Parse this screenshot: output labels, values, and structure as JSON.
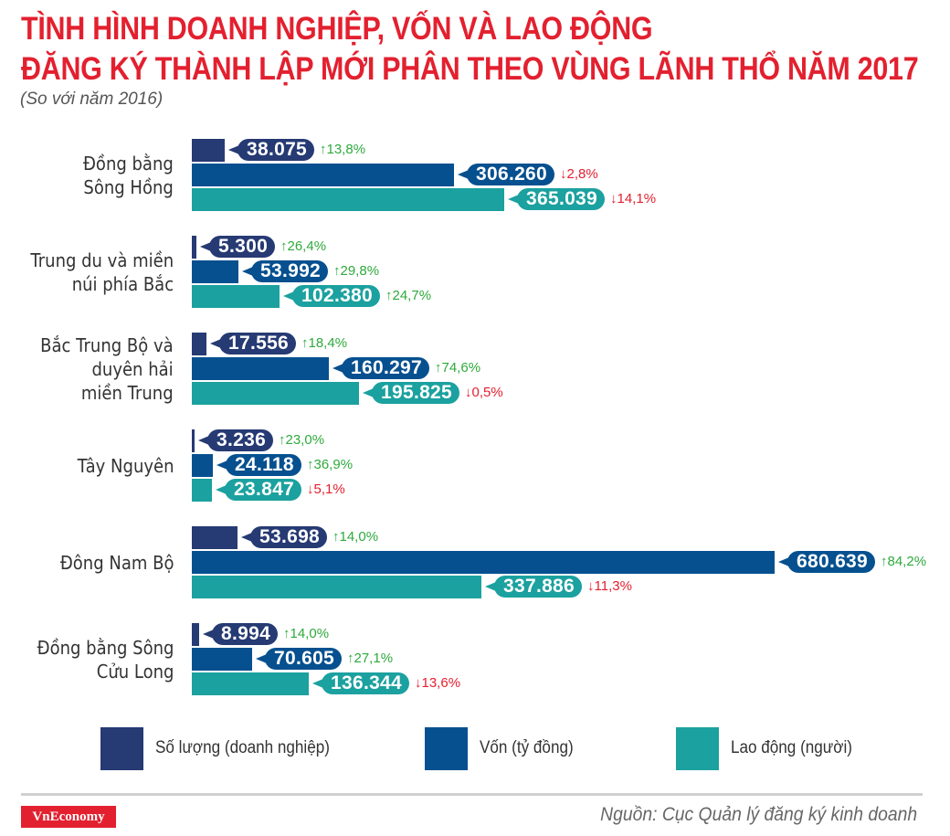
{
  "header": {
    "title_line1": "TÌNH HÌNH DOANH NGHIỆP, VỐN VÀ LAO ĐỘNG",
    "title_line2": "ĐĂNG KÝ THÀNH LẬP MỚI PHÂN THEO VÙNG LÃNH THỔ NĂM 2017",
    "subtitle": "(So với năm 2016)"
  },
  "colors": {
    "title": "#e3202f",
    "so_luong": "#263a73",
    "von": "#06508f",
    "lao_dong": "#1ba19f",
    "up": "#2eaa3c",
    "down": "#e3202f"
  },
  "legend": [
    {
      "label": "Số lượng (doanh nghiệp)",
      "color": "#263a73"
    },
    {
      "label": "Vốn (tỷ đồng)",
      "color": "#06508f"
    },
    {
      "label": "Lao động (người)",
      "color": "#1ba19f"
    }
  ],
  "footer": {
    "logo": "VnEconomy",
    "source": "Nguồn: Cục Quản lý đăng ký kinh doanh"
  },
  "chart_data": {
    "type": "bar",
    "orientation": "horizontal",
    "title": "TÌNH HÌNH DOANH NGHIỆP, VỐN VÀ LAO ĐỘNG ĐĂNG KÝ THÀNH LẬP MỚI PHÂN THEO VÙNG LÃNH THỔ NĂM 2017",
    "subtitle": "(So với năm 2016)",
    "xlabel": "",
    "ylabel": "",
    "grid": false,
    "legend_position": "bottom",
    "categories": [
      "Đồng bằng Sông Hồng",
      "Trung du và miền núi phía Bắc",
      "Bắc Trung Bộ và duyên hải miền Trung",
      "Tây Nguyên",
      "Đông Nam Bộ",
      "Đồng bằng Sông Cửu Long"
    ],
    "series": [
      {
        "name": "Số lượng (doanh nghiệp)",
        "values": [
          38075,
          5300,
          17556,
          3236,
          53698,
          8994
        ],
        "labels": [
          "38.075",
          "5.300",
          "17.556",
          "3.236",
          "53.698",
          "8.994"
        ],
        "change": [
          "↑13,8%",
          "↑26,4%",
          "↑18,4%",
          "↑23,0%",
          "↑14,0%",
          "↑14,0%"
        ],
        "direction": [
          "up",
          "up",
          "up",
          "up",
          "up",
          "up"
        ]
      },
      {
        "name": "Vốn (tỷ đồng)",
        "values": [
          306260,
          53992,
          160297,
          24118,
          680639,
          70605
        ],
        "labels": [
          "306.260",
          "53.992",
          "160.297",
          "24.118",
          "680.639",
          "70.605"
        ],
        "change": [
          "↓2,8%",
          "↑29,8%",
          "↑74,6%",
          "↑36,9%",
          "↑84,2%",
          "↑27,1%"
        ],
        "direction": [
          "down",
          "up",
          "up",
          "up",
          "up",
          "up"
        ]
      },
      {
        "name": "Lao động (người)",
        "values": [
          365039,
          102380,
          195825,
          23847,
          337886,
          136344
        ],
        "labels": [
          "365.039",
          "102.380",
          "195.825",
          "23.847",
          "337.886",
          "136.344"
        ],
        "change": [
          "↓14,1%",
          "↑24,7%",
          "↓0,5%",
          "↓5,1%",
          "↓11,3%",
          "↓13,6%"
        ],
        "direction": [
          "down",
          "up",
          "down",
          "down",
          "down",
          "down"
        ]
      }
    ],
    "region_label_lines": [
      [
        "Đồng bằng",
        "Sông Hồng"
      ],
      [
        "Trung du và miền",
        "núi phía Bắc"
      ],
      [
        "Bắc Trung Bộ và",
        "duyên hải",
        "miền Trung"
      ],
      [
        "Tây Nguyên"
      ],
      [
        "Đông Nam Bộ"
      ],
      [
        "Đồng bằng Sông",
        "Cửu Long"
      ]
    ]
  }
}
